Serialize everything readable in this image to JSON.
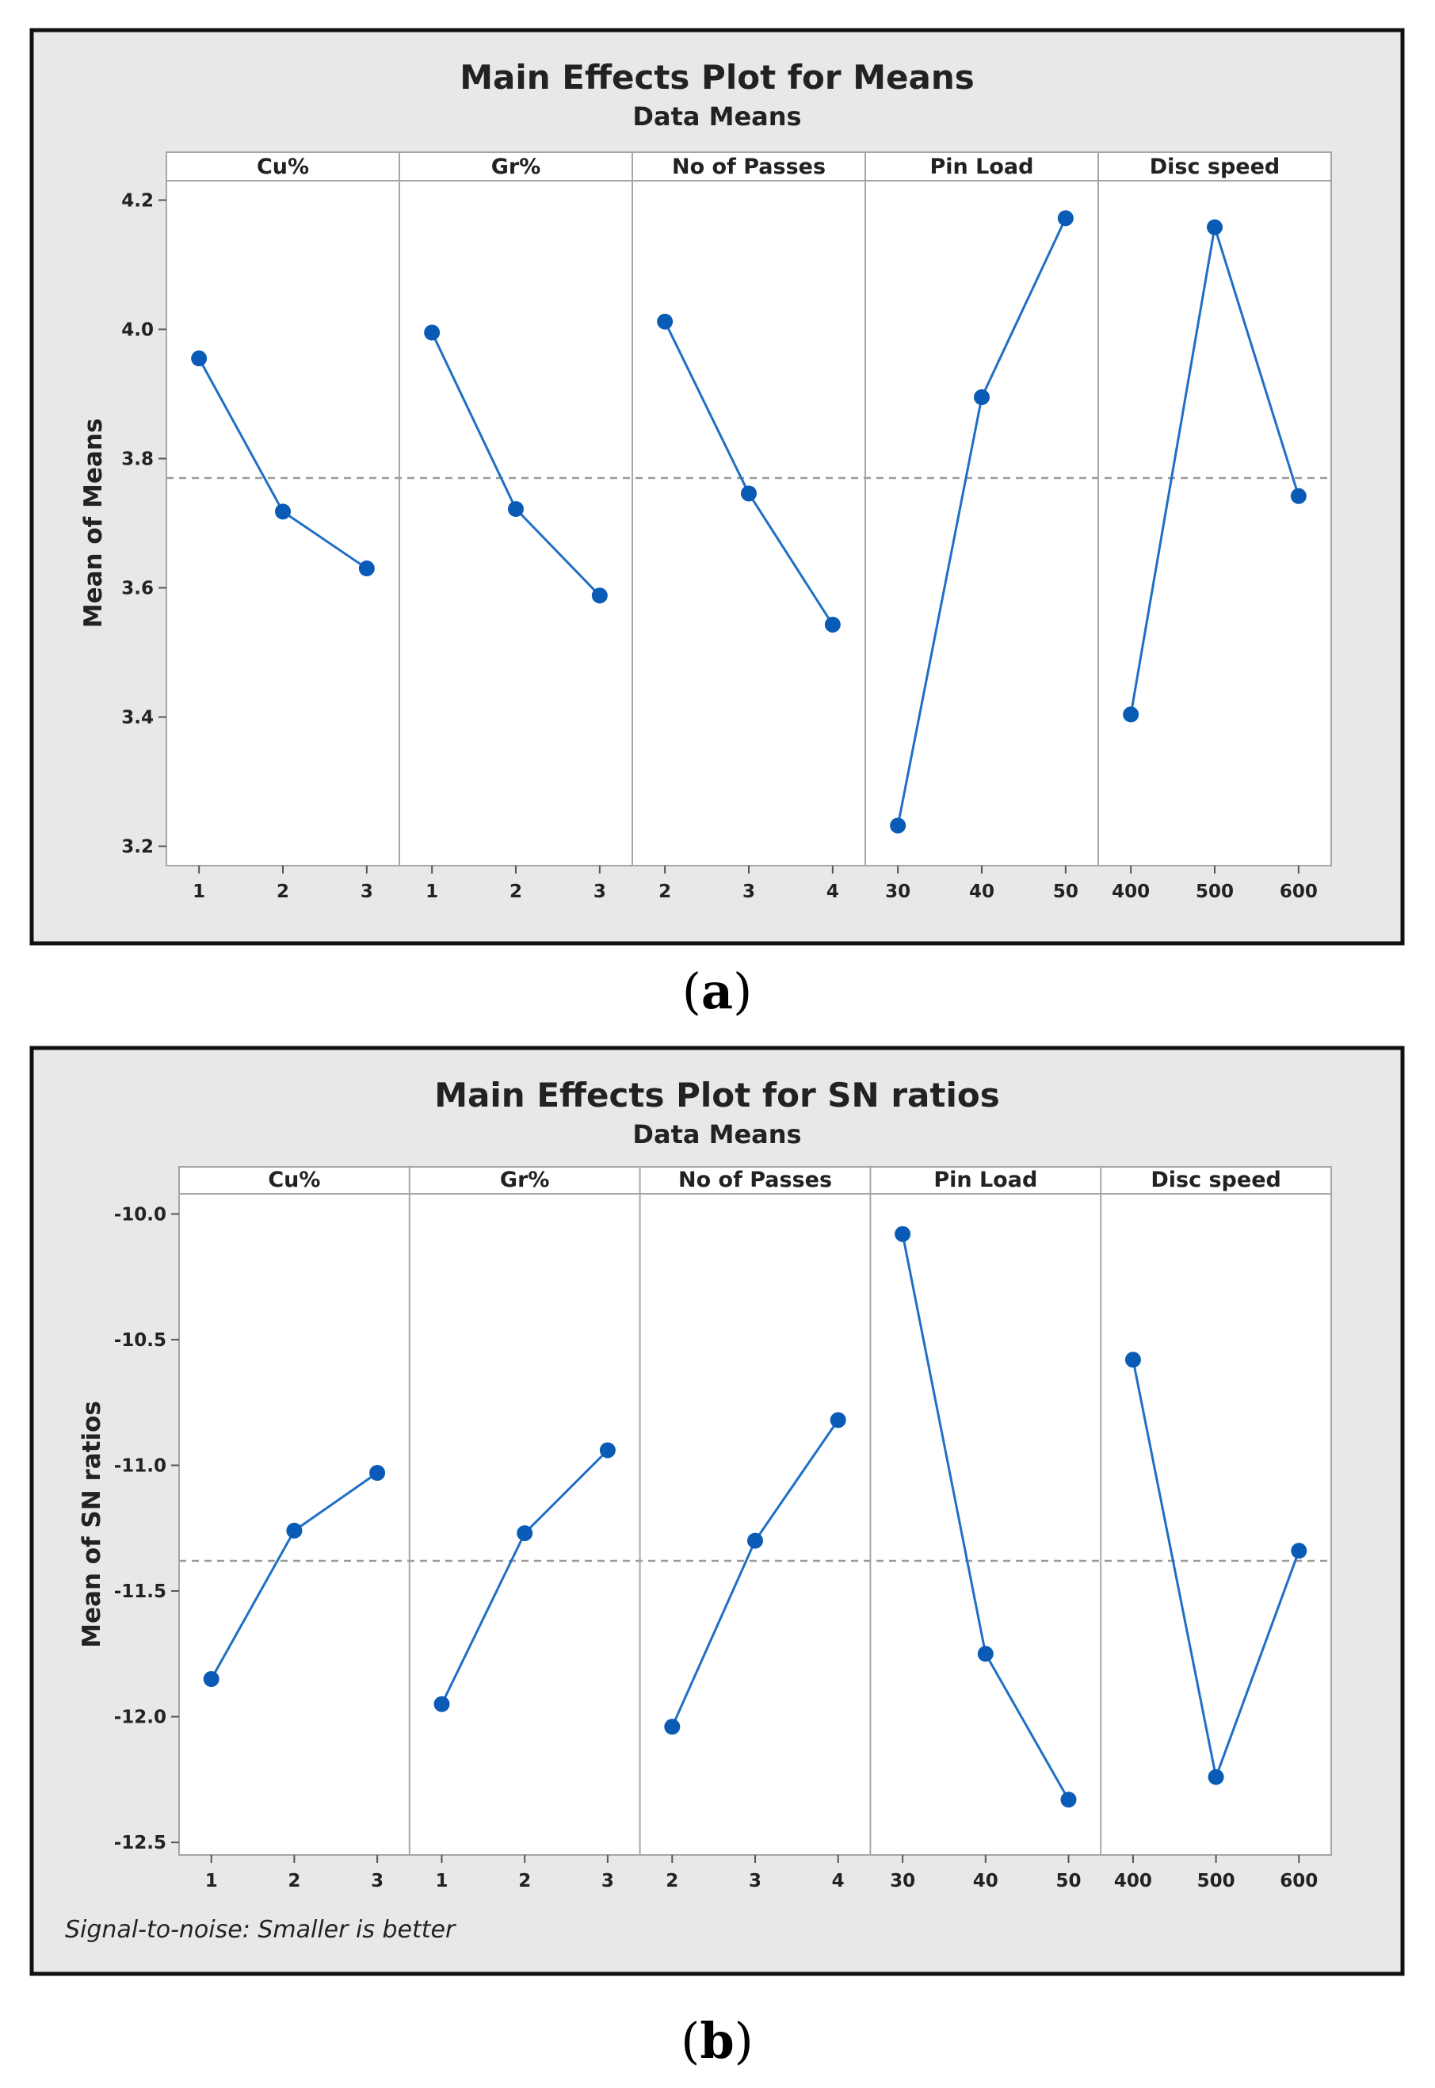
{
  "chart_data": [
    {
      "type": "line",
      "caption": "(a)",
      "caption_letter": "a",
      "title": "Main Effects Plot for Means",
      "subtitle": "Data Means",
      "ylabel": "Mean of Means",
      "ylim": [
        3.17,
        4.23
      ],
      "yticks": [
        3.2,
        3.4,
        3.6,
        3.8,
        4.0,
        4.2
      ],
      "ytick_labels": [
        "3.2",
        "3.4",
        "3.6",
        "3.8",
        "4.0",
        "4.2"
      ],
      "reference_line": 3.77,
      "footnote": "",
      "panels": [
        {
          "name": "Cu%",
          "categories": [
            "1",
            "2",
            "3"
          ],
          "values": [
            3.955,
            3.718,
            3.63
          ]
        },
        {
          "name": "Gr%",
          "categories": [
            "1",
            "2",
            "3"
          ],
          "values": [
            3.995,
            3.722,
            3.588
          ]
        },
        {
          "name": "No of Passes",
          "categories": [
            "2",
            "3",
            "4"
          ],
          "values": [
            4.012,
            3.746,
            3.543
          ]
        },
        {
          "name": "Pin Load",
          "categories": [
            "30",
            "40",
            "50"
          ],
          "values": [
            3.232,
            3.895,
            4.172
          ]
        },
        {
          "name": "Disc speed",
          "categories": [
            "400",
            "500",
            "600"
          ],
          "values": [
            3.404,
            4.158,
            3.742
          ]
        }
      ]
    },
    {
      "type": "line",
      "caption": "(b)",
      "caption_letter": "b",
      "title": "Main Effects Plot for SN ratios",
      "subtitle": "Data Means",
      "ylabel": "Mean of SN ratios",
      "ylim": [
        -12.55,
        -9.92
      ],
      "yticks": [
        -12.5,
        -12.0,
        -11.5,
        -11.0,
        -10.5,
        -10.0
      ],
      "ytick_labels": [
        "-12.5",
        "-12.0",
        "-11.5",
        "-11.0",
        "-10.5",
        "-10.0"
      ],
      "reference_line": -11.38,
      "footnote": "Signal-to-noise: Smaller is better",
      "panels": [
        {
          "name": "Cu%",
          "categories": [
            "1",
            "2",
            "3"
          ],
          "values": [
            -11.85,
            -11.26,
            -11.03
          ]
        },
        {
          "name": "Gr%",
          "categories": [
            "1",
            "2",
            "3"
          ],
          "values": [
            -11.95,
            -11.27,
            -10.94
          ]
        },
        {
          "name": "No of Passes",
          "categories": [
            "2",
            "3",
            "4"
          ],
          "values": [
            -12.04,
            -11.3,
            -10.82
          ]
        },
        {
          "name": "Pin Load",
          "categories": [
            "30",
            "40",
            "50"
          ],
          "values": [
            -10.08,
            -11.75,
            -12.33
          ]
        },
        {
          "name": "Disc speed",
          "categories": [
            "400",
            "500",
            "600"
          ],
          "values": [
            -10.58,
            -12.24,
            -11.34
          ]
        }
      ]
    }
  ],
  "colors": {
    "frame_background": "#e8e8e8",
    "plot_background": "#ffffff",
    "series": "#1f6fc5",
    "marker": "#0a5bb5",
    "reference_line": "#9a9a9a",
    "divider": "#a6a6a6"
  }
}
